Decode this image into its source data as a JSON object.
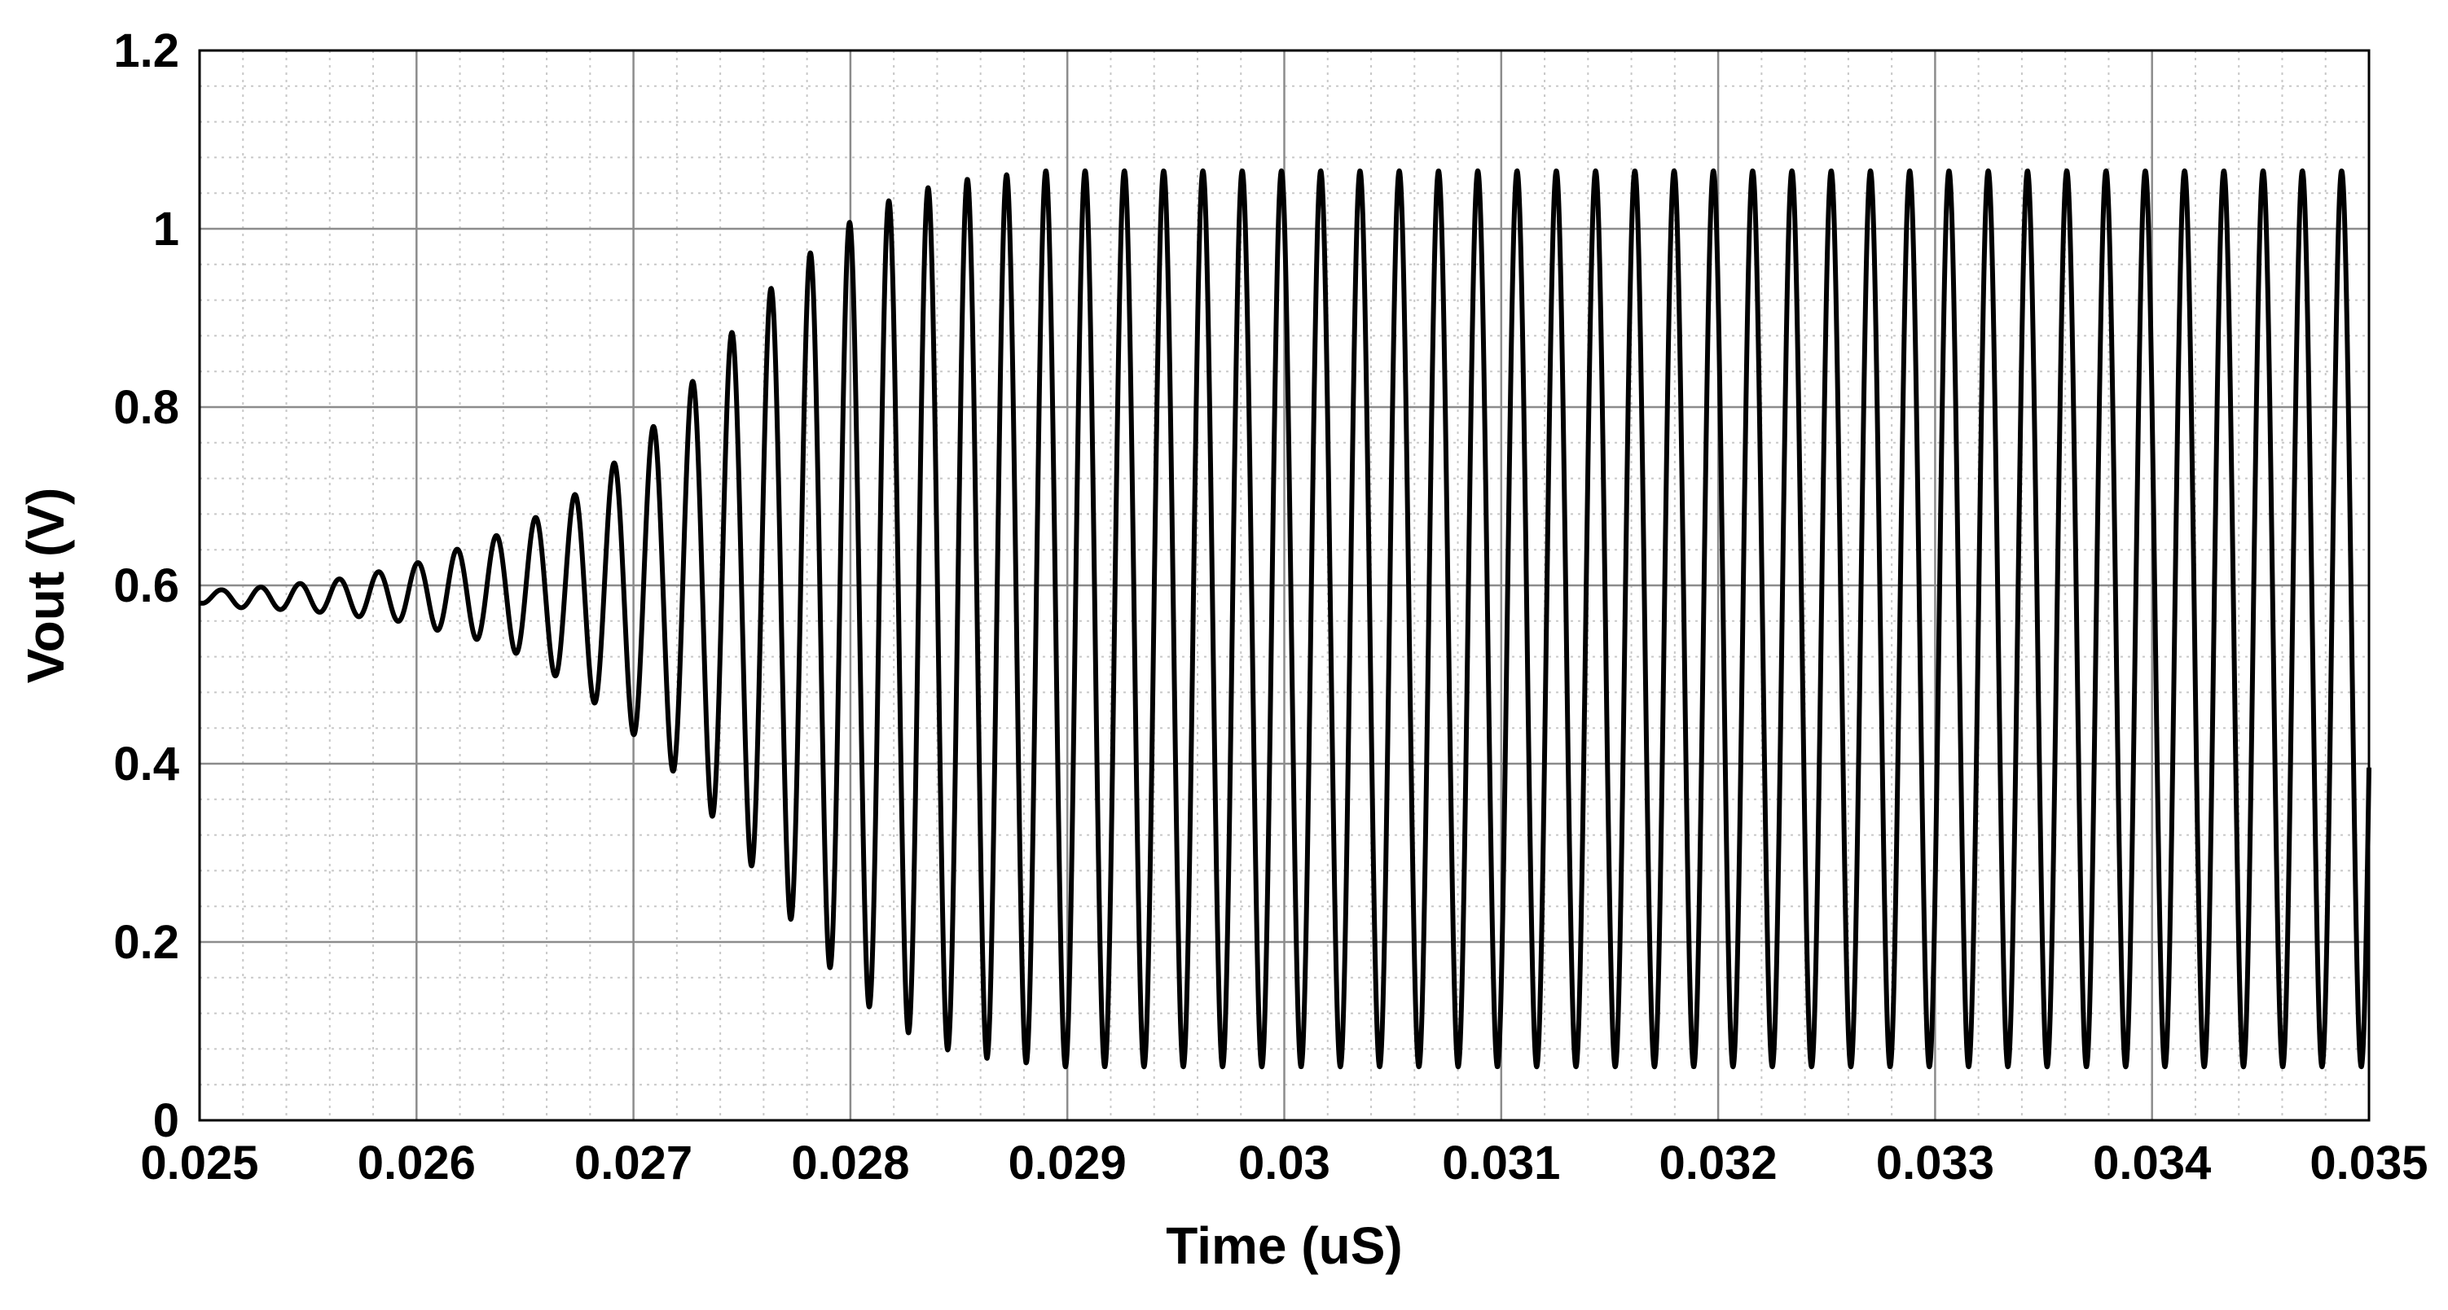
{
  "chart_data": {
    "type": "line",
    "title": "",
    "xlabel": "Time (uS)",
    "ylabel": "Vout (V)",
    "xlim": [
      0.025,
      0.035
    ],
    "ylim": [
      0,
      1.2
    ],
    "x_ticks": [
      "0.025",
      "0.026",
      "0.027",
      "0.028",
      "0.029",
      "0.03",
      "0.031",
      "0.032",
      "0.033",
      "0.034",
      "0.035"
    ],
    "y_ticks": [
      "0",
      "0.2",
      "0.4",
      "0.6",
      "0.8",
      "1",
      "1.2"
    ],
    "grid": true,
    "minor_grid": true,
    "line_color": "#000000",
    "series": [
      {
        "oscillation_period": 0.000181,
        "offset": 0.563,
        "peaks": {
          "x": [
            0.0251,
            0.02528,
            0.02546,
            0.02564,
            0.02582,
            0.026,
            0.02618,
            0.02636,
            0.02654,
            0.02672,
            0.0269,
            0.02708,
            0.02726,
            0.02744,
            0.02762,
            0.0278,
            0.02798,
            0.02816,
            0.02834,
            0.02852,
            0.0287,
            0.02888,
            0.02906,
            0.02924,
            0.02942,
            0.0296,
            0.02978,
            0.02996,
            0.03014,
            0.03032,
            0.0305,
            0.03068,
            0.03086,
            0.03104,
            0.03122,
            0.0314,
            0.03158,
            0.03176,
            0.03194,
            0.03212,
            0.0323,
            0.03248,
            0.03266,
            0.03284,
            0.03302,
            0.0332,
            0.03338,
            0.03356,
            0.03374,
            0.03392,
            0.0341,
            0.03428,
            0.03446,
            0.03464,
            0.03482,
            0.035
          ],
          "y": [
            0.595,
            0.598,
            0.602,
            0.607,
            0.615,
            0.625,
            0.64,
            0.655,
            0.675,
            0.7,
            0.735,
            0.775,
            0.825,
            0.88,
            0.93,
            0.97,
            1.005,
            1.03,
            1.045,
            1.055,
            1.06,
            1.065,
            1.065,
            1.065,
            1.065,
            1.065,
            1.065,
            1.065,
            1.065,
            1.065,
            1.065,
            1.065,
            1.065,
            1.065,
            1.065,
            1.065,
            1.065,
            1.065,
            1.065,
            1.065,
            1.065,
            1.065,
            1.065,
            1.065,
            1.065,
            1.065,
            1.065,
            1.065,
            1.065,
            1.065,
            1.065,
            1.065,
            1.065,
            1.065,
            1.065,
            1.065
          ]
        },
        "troughs": {
          "x": [
            0.02501,
            0.02519,
            0.02537,
            0.02555,
            0.02573,
            0.02591,
            0.02609,
            0.02627,
            0.02645,
            0.02663,
            0.02681,
            0.02699,
            0.02717,
            0.02735,
            0.02753,
            0.02771,
            0.02789,
            0.02807,
            0.02825,
            0.02843,
            0.02861,
            0.02879,
            0.02897,
            0.02915,
            0.02933,
            0.02951,
            0.02969,
            0.02987,
            0.03005,
            0.03023,
            0.03041,
            0.03059,
            0.03077,
            0.03095,
            0.03113,
            0.03131,
            0.03149,
            0.03167,
            0.03185,
            0.03203,
            0.03221,
            0.03239,
            0.03257,
            0.03275,
            0.03293,
            0.03311,
            0.03329,
            0.03347,
            0.03365,
            0.03383,
            0.03401,
            0.03419,
            0.03437,
            0.03455,
            0.03473,
            0.03491
          ],
          "y": [
            0.58,
            0.575,
            0.573,
            0.57,
            0.565,
            0.56,
            0.55,
            0.54,
            0.525,
            0.5,
            0.47,
            0.435,
            0.395,
            0.345,
            0.29,
            0.23,
            0.175,
            0.13,
            0.1,
            0.08,
            0.07,
            0.065,
            0.06,
            0.06,
            0.06,
            0.06,
            0.06,
            0.06,
            0.06,
            0.06,
            0.06,
            0.06,
            0.06,
            0.06,
            0.06,
            0.06,
            0.06,
            0.06,
            0.06,
            0.06,
            0.06,
            0.06,
            0.06,
            0.06,
            0.06,
            0.06,
            0.06,
            0.06,
            0.06,
            0.06,
            0.06,
            0.06,
            0.06,
            0.06,
            0.06,
            0.06
          ]
        }
      }
    ]
  }
}
